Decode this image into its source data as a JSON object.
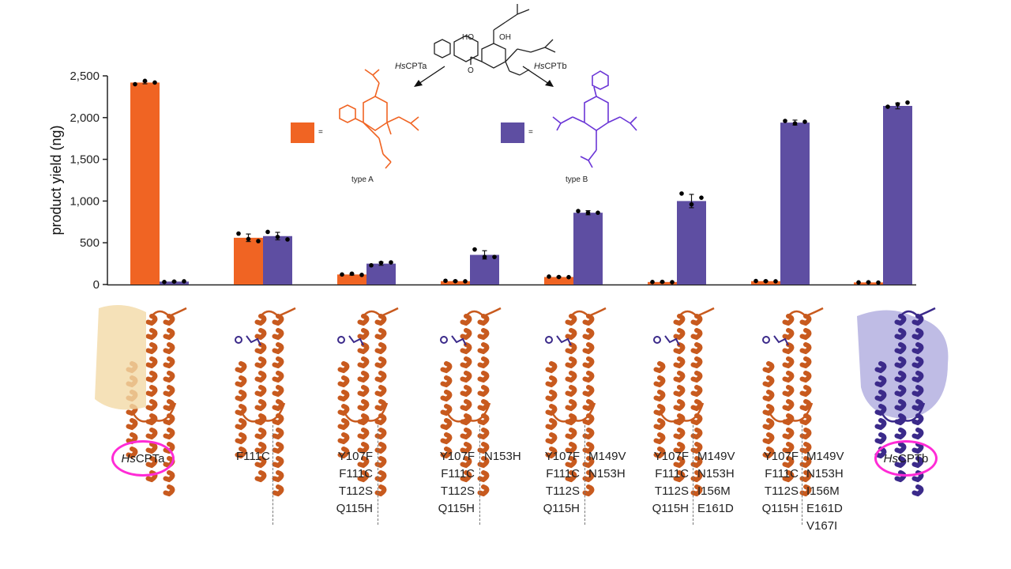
{
  "chart_data": {
    "type": "bar",
    "title": "",
    "xlabel": "",
    "ylabel": "product yield (ng)",
    "ylim": [
      0,
      2500
    ],
    "yticks": [
      0,
      500,
      1000,
      1500,
      2000,
      2500
    ],
    "ytick_labels": [
      "0",
      "500",
      "1,000",
      "1,500",
      "2,000",
      "2,500"
    ],
    "grid": false,
    "categories": [
      "HsCPTa",
      "F111C",
      "Y107F/F111C/T112S/Q115H",
      "Y107F/F111C/T112S/Q115H/N153H",
      "Y107F/F111C/T112S/Q115H/M149V/N153H",
      "Y107F/F111C/T112S/Q115H/M149V/N153H/I156M/E161D",
      "Y107F/F111C/T112S/Q115H/M149V/N153H/I156M/E161D/V167I",
      "HsCPTb"
    ],
    "series": [
      {
        "name": "type A",
        "color": "#f06423",
        "values": [
          2420,
          560,
          120,
          40,
          90,
          30,
          40,
          25
        ],
        "errors": [
          15,
          45,
          8,
          5,
          5,
          4,
          4,
          3
        ],
        "points": [
          [
            2400,
            2440,
            2420
          ],
          [
            610,
            545,
            520
          ],
          [
            120,
            130,
            115
          ],
          [
            45,
            40,
            38
          ],
          [
            95,
            90,
            88
          ],
          [
            30,
            32,
            28
          ],
          [
            42,
            40,
            38
          ],
          [
            25,
            27,
            23
          ]
        ]
      },
      {
        "name": "type B",
        "color": "#5e4ea2",
        "values": [
          35,
          580,
          250,
          355,
          860,
          1000,
          1940,
          2140
        ],
        "errors": [
          3,
          45,
          20,
          50,
          25,
          80,
          30,
          35
        ],
        "points": [
          [
            30,
            35,
            38
          ],
          [
            630,
            570,
            540
          ],
          [
            230,
            260,
            265
          ],
          [
            420,
            330,
            330
          ],
          [
            880,
            860,
            860
          ],
          [
            1090,
            960,
            1040
          ],
          [
            1960,
            1930,
            1950
          ],
          [
            2130,
            2160,
            2180
          ]
        ]
      }
    ]
  },
  "scheme": {
    "arrow_left_label_italic": "Hs",
    "arrow_left_label": "CPTa",
    "arrow_right_label_italic": "Hs",
    "arrow_right_label": "CPTb",
    "equals": "=",
    "type_a": "type A",
    "type_b": "type B",
    "atoms": {
      "ho": "HO",
      "oh": "OH",
      "o": "O"
    }
  },
  "labels": {
    "g1": {
      "italic": "Hs",
      "rest": "CPTa"
    },
    "g2": "F111C",
    "g3_left": "Y107F\nF111C\nT112S\nQ115H",
    "g4_left": "Y107F\nF111C\nT112S\nQ115H",
    "g4_right": "N153H",
    "g5_left": "Y107F\nF111C\nT112S\nQ115H",
    "g5_right": "M149V\nN153H",
    "g6_left": "Y107F\nF111C\nT112S\nQ115H",
    "g6_right": "M149V\nN153H\nI156M\nE161D",
    "g7_left": "Y107F\nF111C\nT112S\nQ115H",
    "g7_right": "M149V\nN153H\nI156M\nE161D\nV167I",
    "g8": {
      "italic": "Hs",
      "rest": "CPTb"
    }
  }
}
